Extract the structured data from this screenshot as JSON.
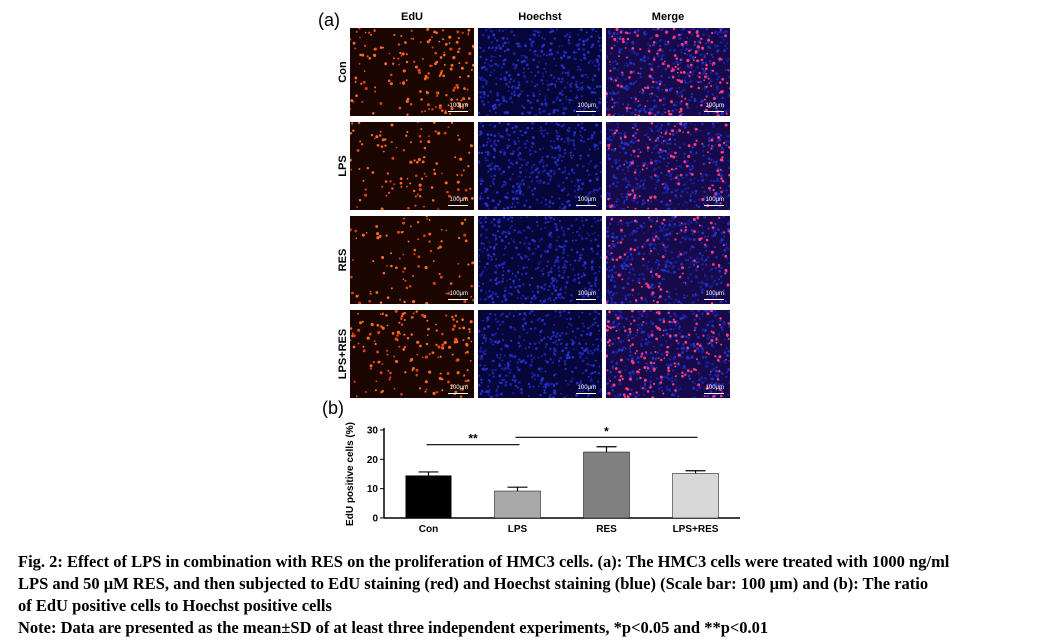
{
  "panel_a": {
    "label": "(a)",
    "columns": [
      "EdU",
      "Hoechst",
      "Merge"
    ],
    "rows": [
      "Con",
      "LPS",
      "RES",
      "LPS+RES"
    ],
    "scale_bar": "100μm"
  },
  "panel_b": {
    "label": "(b)",
    "chart_data": {
      "type": "bar",
      "categories": [
        "Con",
        "LPS",
        "RES",
        "LPS+RES"
      ],
      "values": [
        14.5,
        9.2,
        22.5,
        15.2
      ],
      "errors": [
        1.2,
        1.3,
        1.8,
        0.9
      ],
      "bar_colors": [
        "#000000",
        "#a9a9a9",
        "#808080",
        "#d8d8d8"
      ],
      "ylabel": "EdU positive cells (%)",
      "ylim": [
        0,
        30
      ],
      "yticks": [
        "0",
        "10",
        "20",
        "30"
      ],
      "significance": [
        {
          "from": "Con",
          "to": "LPS",
          "label": "**"
        },
        {
          "from": "LPS",
          "to": "LPS+RES",
          "label": "*"
        }
      ]
    }
  },
  "caption": {
    "line1": "Fig. 2: Effect of LPS in combination with RES on the proliferation of HMC3 cells. (a): The HMC3 cells were treated with 1000 ng/ml",
    "line2": "LPS and 50 μM RES, and then subjected to EdU staining (red) and Hoechst staining (blue) (Scale bar: 100 μm) and (b): The ratio",
    "line3": "of EdU positive cells to Hoechst positive cells",
    "note": "Note: Data are presented as the mean±SD of at least three independent experiments, *p<0.05 and **p<0.01"
  }
}
